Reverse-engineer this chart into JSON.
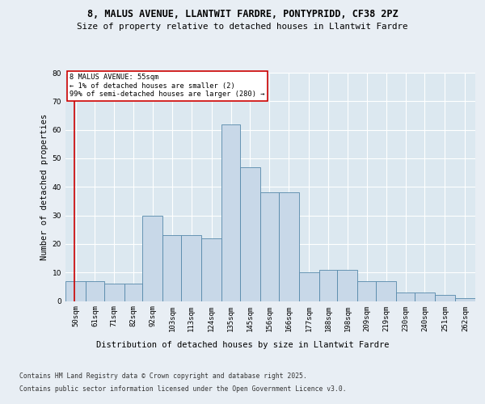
{
  "title_line1": "8, MALUS AVENUE, LLANTWIT FARDRE, PONTYPRIDD, CF38 2PZ",
  "title_line2": "Size of property relative to detached houses in Llantwit Fardre",
  "xlabel": "Distribution of detached houses by size in Llantwit Fardre",
  "ylabel": "Number of detached properties",
  "categories": [
    "50sqm",
    "61sqm",
    "71sqm",
    "82sqm",
    "92sqm",
    "103sqm",
    "113sqm",
    "124sqm",
    "135sqm",
    "145sqm",
    "156sqm",
    "166sqm",
    "177sqm",
    "188sqm",
    "198sqm",
    "209sqm",
    "219sqm",
    "230sqm",
    "240sqm",
    "251sqm",
    "262sqm"
  ],
  "bin_starts": [
    50,
    61,
    71,
    82,
    92,
    103,
    113,
    124,
    135,
    145,
    156,
    166,
    177,
    188,
    198,
    209,
    219,
    230,
    240,
    251,
    262
  ],
  "bin_ends": [
    61,
    71,
    82,
    92,
    103,
    113,
    124,
    135,
    145,
    156,
    166,
    177,
    188,
    198,
    209,
    219,
    230,
    240,
    251,
    262,
    273
  ],
  "heights": [
    7,
    7,
    6,
    6,
    30,
    23,
    23,
    22,
    62,
    47,
    38,
    38,
    10,
    11,
    11,
    7,
    7,
    3,
    3,
    2,
    1
  ],
  "bar_color": "#c8d8e8",
  "bar_edge_color": "#5588aa",
  "highlight_color": "#cc0000",
  "ylim": [
    0,
    80
  ],
  "yticks": [
    0,
    10,
    20,
    30,
    40,
    50,
    60,
    70,
    80
  ],
  "annotation_title": "8 MALUS AVENUE: 55sqm",
  "annotation_line1": "← 1% of detached houses are smaller (2)",
  "annotation_line2": "99% of semi-detached houses are larger (280) →",
  "bg_color": "#e8eef4",
  "plot_bg_color": "#dce8f0",
  "grid_color": "#ffffff",
  "footer_line1": "Contains HM Land Registry data © Crown copyright and database right 2025.",
  "footer_line2": "Contains public sector information licensed under the Open Government Licence v3.0."
}
